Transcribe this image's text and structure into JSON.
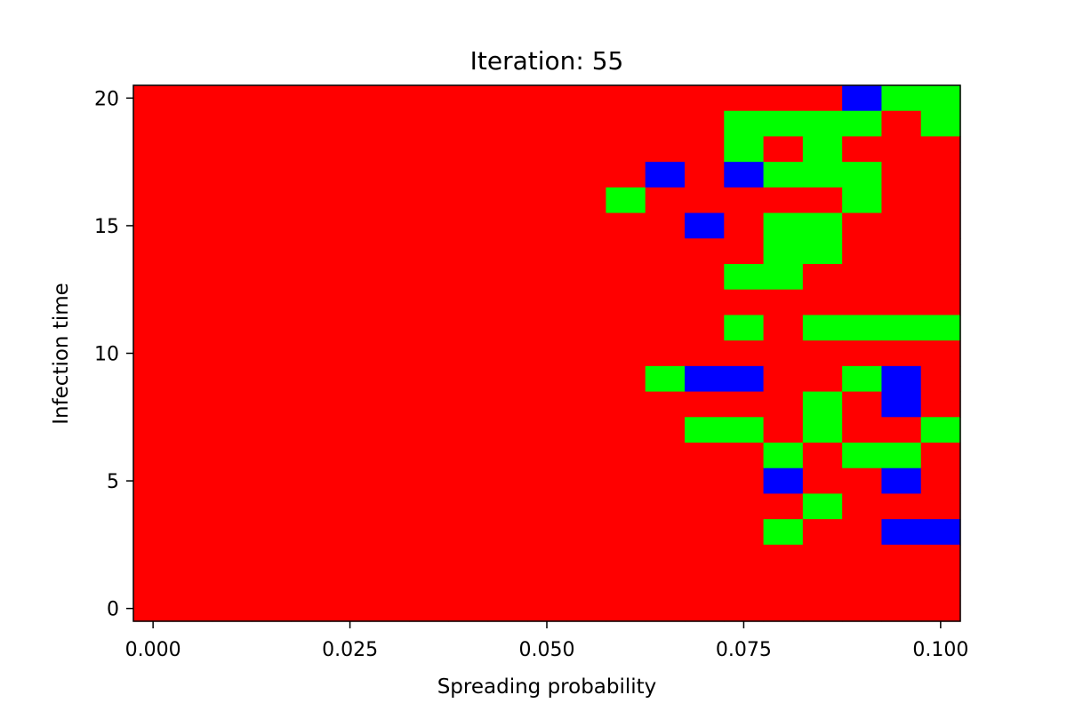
{
  "chart_data": {
    "type": "heatmap",
    "title": "Iteration: 55",
    "xlabel": "Spreading probability",
    "ylabel": "Infection time",
    "x_ticks": [
      {
        "value": 0.0,
        "label": "0.000"
      },
      {
        "value": 0.025,
        "label": "0.025"
      },
      {
        "value": 0.05,
        "label": "0.050"
      },
      {
        "value": 0.075,
        "label": "0.075"
      },
      {
        "value": 0.1,
        "label": "0.100"
      }
    ],
    "y_ticks": [
      {
        "value": 0,
        "label": "0"
      },
      {
        "value": 5,
        "label": "5"
      },
      {
        "value": 10,
        "label": "10"
      },
      {
        "value": 15,
        "label": "15"
      },
      {
        "value": 20,
        "label": "20"
      }
    ],
    "xlim": [
      -0.0025,
      0.1025
    ],
    "ylim": [
      -0.5,
      20.5
    ],
    "x_values": [
      0.0,
      0.005,
      0.01,
      0.015,
      0.02,
      0.025,
      0.03,
      0.035,
      0.04,
      0.045,
      0.05,
      0.055,
      0.06,
      0.065,
      0.07,
      0.075,
      0.08,
      0.085,
      0.09,
      0.095,
      0.1
    ],
    "y_values": [
      0,
      1,
      2,
      3,
      4,
      5,
      6,
      7,
      8,
      9,
      10,
      11,
      12,
      13,
      14,
      15,
      16,
      17,
      18,
      19,
      20
    ],
    "state_colors": {
      "R": "#ff0000",
      "G": "#00ff00",
      "B": "#0000ff"
    },
    "grid_rows_top_to_bottom": [
      "RRRRRRRRRRRRRRRRRRBGG",
      "RRRRRRRRRRRRRRRGGGGRG",
      "RRRRRRRRRRRRRRRGRGRRR",
      "RRRRRRRRRRRRRBRBGGGRR",
      "RRRRRRRRRRRRGRRRRRGRR",
      "RRRRRRRRRRRRRRBRGGRRR",
      "RRRRRRRRRRRRRRRRGGRRR",
      "RRRRRRRRRRRRRRRGGRRRR",
      "RRRRRRRRRRRRRRRRRRRRR",
      "RRRRRRRRRRRRRRRGRGGGG",
      "RRRRRRRRRRRRRRRRRRRRR",
      "RRRRRRRRRRRRRGBBRRGBR",
      "RRRRRRRRRRRRRRRRRGRBR",
      "RRRRRRRRRRRRRRGGRGRRG",
      "RRRRRRRRRRRRRRRRGRGGR",
      "RRRRRRRRRRRRRRRRBRRBR",
      "RRRRRRRRRRRRRRRRRGRRR",
      "RRRRRRRRRRRRRRRRGRRBB",
      "RRRRRRRRRRRRRRRRRRRRR",
      "RRRRRRRRRRRRRRRRRRRRR",
      "RRRRRRRRRRRRRRRRRRRRR"
    ]
  }
}
